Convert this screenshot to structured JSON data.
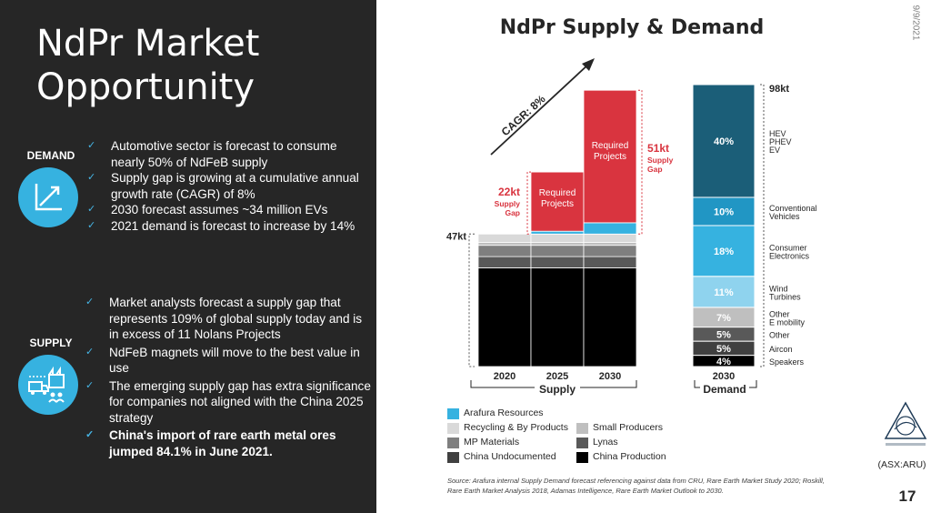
{
  "slide": {
    "title": "NdPr Market Opportunity",
    "date": "9/9/2021",
    "ticker": "(ASX:ARU)",
    "page_number": "17"
  },
  "demand": {
    "label": "DEMAND",
    "icon": "growth-chart-icon",
    "bullets": [
      "Automotive sector is forecast to consume nearly 50% of NdFeB supply",
      "Supply gap is growing at a cumulative annual growth rate (CAGR) of 8%",
      "2030 forecast assumes ~34 million EVs",
      "2021 demand is forecast to increase by 14%"
    ]
  },
  "supply": {
    "label": "SUPPLY",
    "icon": "supply-chain-icon",
    "bullets": [
      "Market analysts forecast a supply gap that represents 109% of global supply today and is in excess of 11 Nolans Projects",
      "NdFeB magnets will move to the best value in use",
      "The emerging supply gap has extra significance for companies not aligned with the China 2025 strategy"
    ],
    "bold_bullet": "China's import of rare earth metal ores jumped 84.1% in June 2021."
  },
  "colors": {
    "accent": "#36b2e0",
    "dark_panel": "#262626",
    "required": "#d9343f",
    "check": "#46b4e4"
  },
  "chart_data": {
    "title": "NdPr Supply & Demand",
    "type": "bar",
    "supply": {
      "group_label": "Supply",
      "categories": [
        "2020",
        "2025",
        "2030"
      ],
      "base_label": "47kt",
      "cagr_label": "CAGR: 8%",
      "stacks": [
        {
          "name": "China Production",
          "values": [
            35,
            35,
            35
          ]
        },
        {
          "name": "Lynas",
          "values": [
            4,
            4,
            4
          ]
        },
        {
          "name": "MP Materials",
          "values": [
            4,
            4,
            4
          ]
        },
        {
          "name": "Small Producers",
          "values": [
            1,
            1,
            1
          ]
        },
        {
          "name": "Recycling & By Products",
          "values": [
            3,
            3,
            3
          ]
        },
        {
          "name": "Arafura Resources",
          "values": [
            0,
            1,
            4
          ]
        },
        {
          "name": "Required Projects",
          "values": [
            0,
            21,
            47
          ]
        }
      ],
      "required_label": "Required\nProjects",
      "gaps": [
        {
          "category": "2025",
          "value": "22kt",
          "label": "Supply\nGap"
        },
        {
          "category": "2030",
          "value": "51kt",
          "label": "Supply\nGap"
        }
      ]
    },
    "demand": {
      "group_label": "Demand",
      "category": "2030",
      "total_label": "98kt",
      "segments": [
        {
          "name": "Speakers",
          "pct": "4%",
          "value": 4
        },
        {
          "name": "Aircon",
          "pct": "5%",
          "value": 5
        },
        {
          "name": "Other",
          "pct": "5%",
          "value": 5
        },
        {
          "name": "Other\nE mobility",
          "pct": "7%",
          "value": 7
        },
        {
          "name": "Wind\nTurbines",
          "pct": "11%",
          "value": 11
        },
        {
          "name": "Consumer\nElectronics",
          "pct": "18%",
          "value": 18
        },
        {
          "name": "Conventional\nVehicles",
          "pct": "10%",
          "value": 10
        },
        {
          "name": "HEV\nPHEV\nEV",
          "pct": "40%",
          "value": 40
        }
      ]
    },
    "legend": [
      {
        "name": "Arafura Resources",
        "color": "#36b2e0"
      },
      {
        "name": "Recycling & By Products",
        "color": "#d9d9d9"
      },
      {
        "name": "Small Producers",
        "color": "#bfbfbf"
      },
      {
        "name": "MP Materials",
        "color": "#7f7f7f"
      },
      {
        "name": "Lynas",
        "color": "#595959"
      },
      {
        "name": "China Undocumented",
        "color": "#404040"
      },
      {
        "name": "China Production",
        "color": "#000000"
      }
    ]
  },
  "source": "Source: Arafura internal Supply Demand forecast referencing against data from CRU, Rare Earth Market Study 2020; Roskill, Rare Earth Market Analysis 2018, Adamas Intelligence, Rare Earth Market Outlook to 2030."
}
